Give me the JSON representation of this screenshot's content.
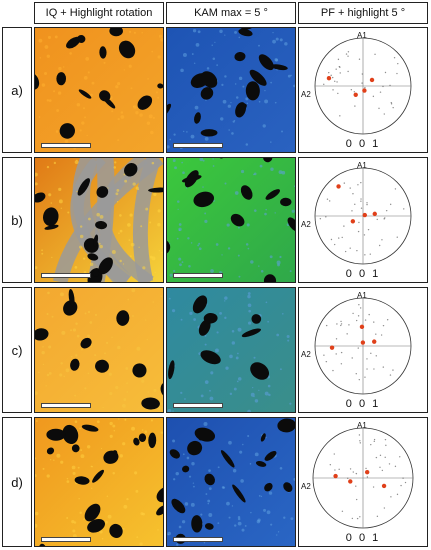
{
  "headers": {
    "col1": "IQ + Highlight rotation",
    "col2": "KAM max = 5 °",
    "col3": "PF + highlight 5 °"
  },
  "rows": [
    {
      "label": "a)",
      "pf_axis_top": "A1",
      "pf_axis_left": "A2",
      "pf_miller": "0 0 1"
    },
    {
      "label": "b)",
      "pf_axis_top": "A1",
      "pf_axis_left": "A2",
      "pf_miller": "0 0 1"
    },
    {
      "label": "c)",
      "pf_axis_top": "A1",
      "pf_axis_left": "A2",
      "pf_miller": "0 0 1"
    },
    {
      "label": "d)",
      "pf_axis_top": "A1",
      "pf_axis_left": "A2",
      "pf_miller": "0 0 1"
    }
  ],
  "colors": {
    "iq_orange": "#f0921e",
    "iq_yellow": "#f6c22e",
    "kam_blue": "#1e54b4",
    "kam_green": "#3cc83c",
    "kam_teal": "#2f8aa0",
    "pf_red": "#e0401a"
  }
}
